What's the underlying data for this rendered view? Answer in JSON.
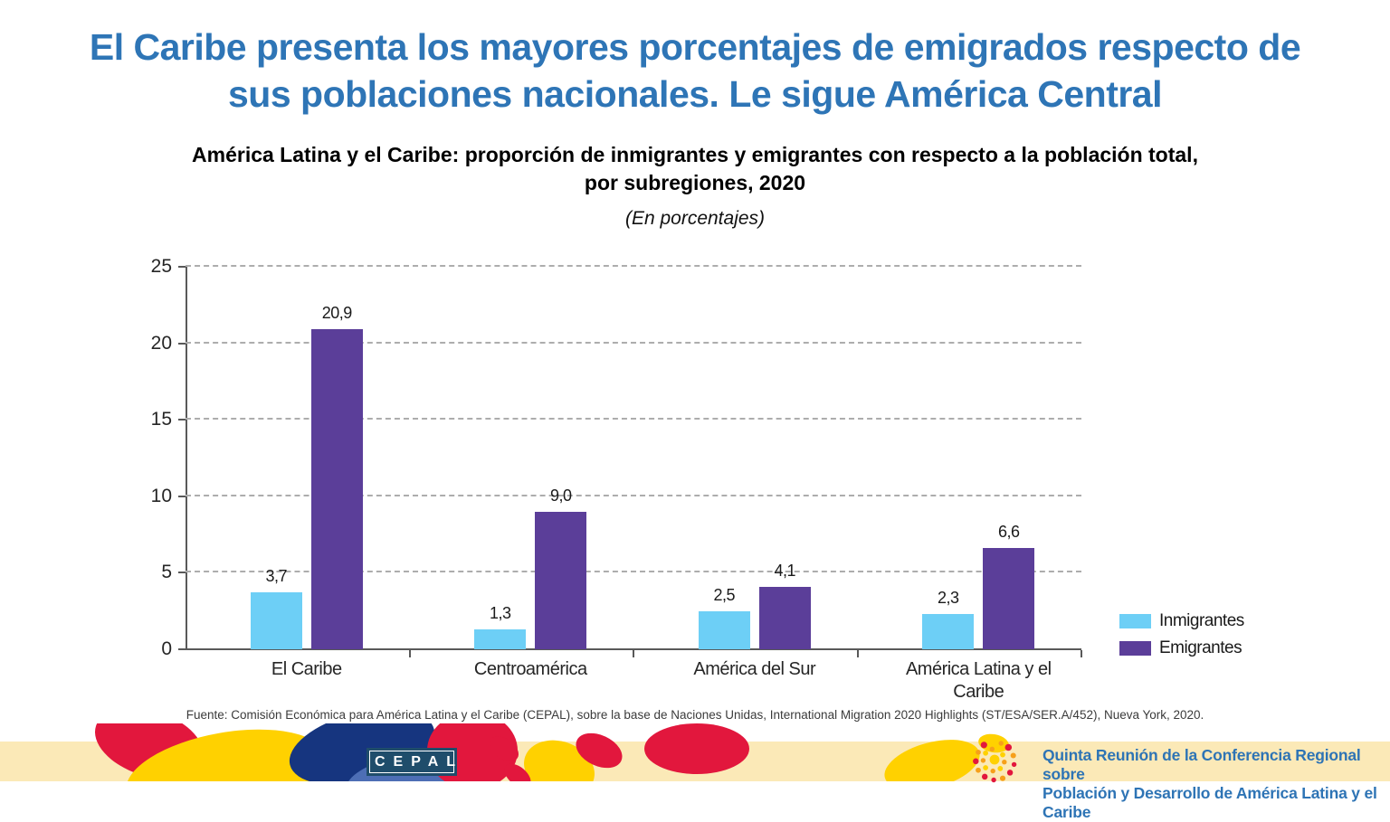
{
  "slide": {
    "title": "El Caribe presenta los mayores porcentajes de emigrados respecto de sus poblaciones nacionales. Le sigue América Central",
    "chart_title": "América Latina y el Caribe: proporción de inmigrantes y emigrantes con respecto a la población total,\npor subregiones, 2020",
    "units_note": "(En porcentajes)",
    "source": "Fuente: Comisión Económica para América Latina y el Caribe (CEPAL), sobre la base de Naciones Unidas, International Migration 2020 Highlights (ST/ESA/SER.A/452), Nueva York, 2020."
  },
  "chart_data": {
    "type": "bar",
    "title": "América Latina y el Caribe: proporción de inmigrantes y emigrantes con respecto a la población total, por subregiones, 2020",
    "subtitle": "(En porcentajes)",
    "categories": [
      "El Caribe",
      "Centroamérica",
      "América del Sur",
      "América Latina y el Caribe"
    ],
    "series": [
      {
        "name": "Inmigrantes",
        "color": "#6DCFF6",
        "values": [
          3.7,
          1.3,
          2.5,
          2.3
        ],
        "labels": [
          "3,7",
          "1,3",
          "2,5",
          "2,3"
        ]
      },
      {
        "name": "Emigrantes",
        "color": "#5B3E99",
        "values": [
          20.9,
          9.0,
          4.1,
          6.6
        ],
        "labels": [
          "20,9",
          "9,0",
          "4,1",
          "6,6"
        ]
      }
    ],
    "xlabel": "",
    "ylabel": "",
    "ylim": [
      0,
      25
    ],
    "yticks": [
      0,
      5,
      10,
      15,
      20,
      25
    ],
    "grid": "horizontal-dashed",
    "legend_position": "right-bottom"
  },
  "footer_banner": {
    "cepal_logo_text": "CEPAL",
    "conference_text": "Quinta Reunión de la Conferencia Regional sobre\nPoblación y Desarrollo de América Latina y el Caribe"
  },
  "colors": {
    "title_blue": "#2E75B6",
    "inmigrantes": "#6DCFF6",
    "emigrantes": "#5B3E99",
    "banner_background": "#FBE9B7",
    "banner_red": "#E2173D",
    "banner_yellow": "#FFD100",
    "banner_navy": "#16357F",
    "banner_blue": "#4D6EB5",
    "cepal_logo_navy": "#1F4D6B",
    "conference_text_blue": "#2E74B5"
  }
}
